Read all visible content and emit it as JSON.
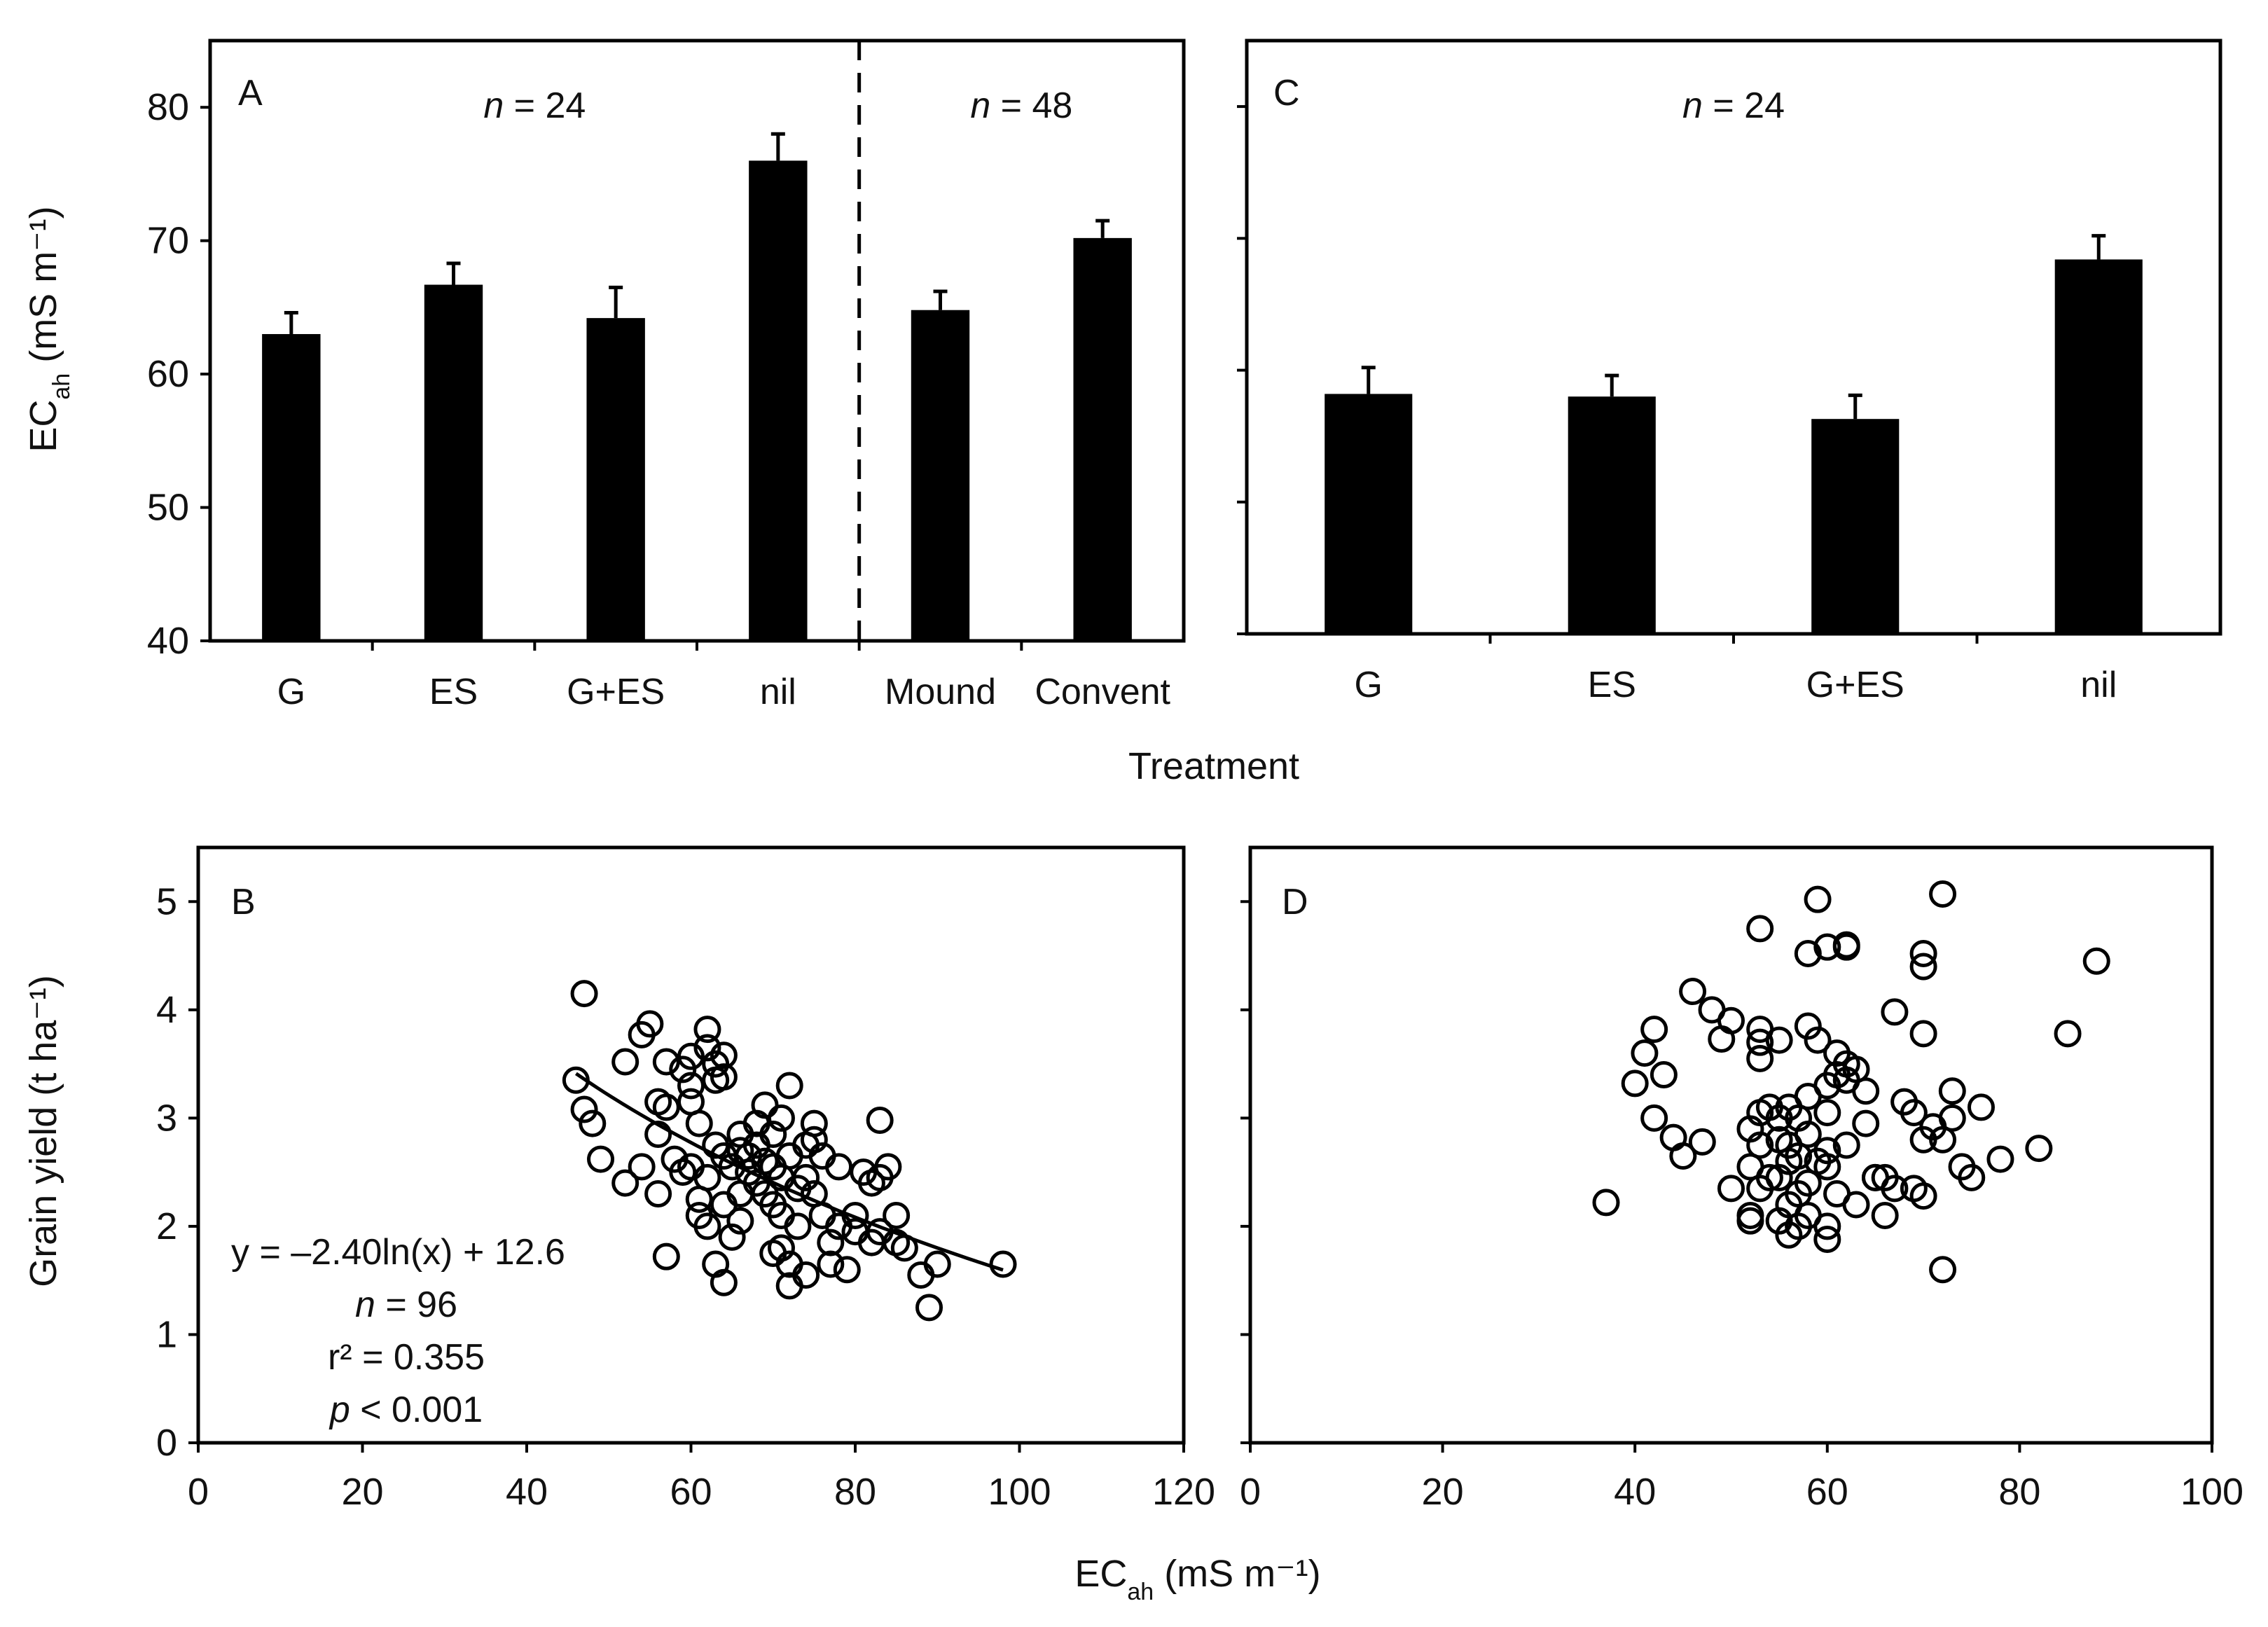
{
  "figure": {
    "y_title_top": "EC",
    "y_title_top_sub": "ah",
    "y_title_top_unit": " (mS m⁻¹)",
    "y_title_bottom": "Grain yield (t ha⁻¹)",
    "x_title_top": "Treatment",
    "x_title_bottom": "EC",
    "x_title_bottom_sub": "ah",
    "x_title_bottom_unit": " (mS m⁻¹)"
  },
  "chart_data": [
    {
      "panel": "A",
      "type": "bar",
      "title": "",
      "categories": [
        "G",
        "ES",
        "G+ES",
        "nil",
        "Mound",
        "Convent"
      ],
      "values": [
        63,
        66.7,
        64.2,
        76,
        64.8,
        70.2
      ],
      "errors": [
        1.6,
        1.6,
        2.3,
        2,
        1.4,
        1.3
      ],
      "ylim": [
        40,
        85
      ],
      "yticks": [
        "40",
        "50",
        "60",
        "70",
        "80"
      ],
      "xlabel": "Treatment",
      "ylabel": "ECah (mS m⁻¹)",
      "divider_after_index": 3,
      "annotations": [
        {
          "italic": "n",
          "text": " = 24",
          "group": "left"
        },
        {
          "italic": "n",
          "text": " = 48",
          "group": "right"
        }
      ],
      "bar_color": "#000000"
    },
    {
      "panel": "C",
      "type": "bar",
      "title": "",
      "categories": [
        "G",
        "ES",
        "G+ES",
        "nil"
      ],
      "values": [
        58.2,
        58,
        56.3,
        68.4
      ],
      "errors": [
        2,
        1.6,
        1.8,
        1.8
      ],
      "ylim": [
        40,
        85
      ],
      "yticks": [
        "",
        "",
        "",
        "",
        ""
      ],
      "xlabel": "Treatment",
      "ylabel": "",
      "annotations": [
        {
          "italic": "n",
          "text": " = 24",
          "group": "center"
        }
      ],
      "bar_color": "#000000"
    },
    {
      "panel": "B",
      "type": "scatter",
      "xlim": [
        0,
        120
      ],
      "ylim": [
        0,
        5.5
      ],
      "xticks": [
        "0",
        "20",
        "40",
        "60",
        "80",
        "100",
        "120"
      ],
      "yticks": [
        "0",
        "1",
        "2",
        "3",
        "4",
        "5"
      ],
      "xlabel": "ECah (mS m⁻¹)",
      "ylabel": "Grain yield (t ha⁻¹)",
      "fit": {
        "equation": "y = –2.40ln(x) + 12.6",
        "a": -2.4,
        "b": 12.6,
        "x_range": [
          46,
          98
        ]
      },
      "stats": {
        "n_italic": "n",
        "n_text": " = 96",
        "r2": "r² = 0.355",
        "p_italic": "p",
        "p_text": " < 0.001"
      },
      "points": [
        [
          47,
          4.15
        ],
        [
          46,
          3.35
        ],
        [
          47,
          3.08
        ],
        [
          48,
          2.95
        ],
        [
          49,
          2.62
        ],
        [
          52,
          3.52
        ],
        [
          52,
          2.4
        ],
        [
          54,
          3.77
        ],
        [
          55,
          3.87
        ],
        [
          54,
          2.55
        ],
        [
          56,
          3.15
        ],
        [
          56,
          2.85
        ],
        [
          56,
          2.3
        ],
        [
          57,
          3.52
        ],
        [
          57,
          3.1
        ],
        [
          57,
          1.72
        ],
        [
          58,
          2.62
        ],
        [
          59,
          3.45
        ],
        [
          60,
          3.57
        ],
        [
          60,
          3.3
        ],
        [
          60,
          3.15
        ],
        [
          61,
          2.95
        ],
        [
          60,
          2.55
        ],
        [
          61,
          2.1
        ],
        [
          62,
          2.45
        ],
        [
          62,
          3.82
        ],
        [
          62,
          3.65
        ],
        [
          63,
          3.5
        ],
        [
          63,
          3.35
        ],
        [
          63,
          2.75
        ],
        [
          62,
          2.0
        ],
        [
          63,
          1.65
        ],
        [
          64,
          3.58
        ],
        [
          64,
          3.38
        ],
        [
          64,
          2.65
        ],
        [
          64,
          2.2
        ],
        [
          64,
          1.48
        ],
        [
          65,
          2.55
        ],
        [
          65,
          1.9
        ],
        [
          66,
          2.7
        ],
        [
          66,
          2.3
        ],
        [
          66,
          2.05
        ],
        [
          67,
          2.65
        ],
        [
          67,
          2.5
        ],
        [
          68,
          2.75
        ],
        [
          68,
          2.4
        ],
        [
          69,
          3.12
        ],
        [
          69,
          2.6
        ],
        [
          70,
          2.85
        ],
        [
          70,
          2.55
        ],
        [
          70,
          2.2
        ],
        [
          70,
          1.75
        ],
        [
          71,
          3.0
        ],
        [
          71,
          2.45
        ],
        [
          71,
          2.1
        ],
        [
          72,
          3.3
        ],
        [
          72,
          2.65
        ],
        [
          72,
          1.65
        ],
        [
          72,
          1.45
        ],
        [
          73,
          2.35
        ],
        [
          73,
          2.0
        ],
        [
          74,
          2.75
        ],
        [
          74,
          2.45
        ],
        [
          74,
          1.55
        ],
        [
          75,
          2.95
        ],
        [
          75,
          2.8
        ],
        [
          75,
          2.3
        ],
        [
          76,
          2.65
        ],
        [
          76,
          2.1
        ],
        [
          77,
          1.85
        ],
        [
          77,
          1.65
        ],
        [
          78,
          2.55
        ],
        [
          78,
          2.0
        ],
        [
          79,
          1.6
        ],
        [
          80,
          2.1
        ],
        [
          80,
          1.95
        ],
        [
          81,
          2.5
        ],
        [
          82,
          2.4
        ],
        [
          82,
          1.85
        ],
        [
          83,
          2.98
        ],
        [
          83,
          2.45
        ],
        [
          83,
          1.95
        ],
        [
          84,
          2.55
        ],
        [
          85,
          2.1
        ],
        [
          85,
          1.85
        ],
        [
          86,
          1.8
        ],
        [
          88,
          1.55
        ],
        [
          89,
          1.25
        ],
        [
          90,
          1.65
        ],
        [
          98,
          1.65
        ],
        [
          68,
          2.95
        ],
        [
          66,
          2.85
        ],
        [
          59,
          2.5
        ],
        [
          61,
          2.25
        ],
        [
          69,
          2.3
        ],
        [
          71,
          1.8
        ]
      ]
    },
    {
      "panel": "D",
      "type": "scatter",
      "xlim": [
        0,
        100
      ],
      "ylim": [
        0,
        5.5
      ],
      "xticks": [
        "0",
        "20",
        "40",
        "60",
        "80",
        "100"
      ],
      "yticks": [
        "",
        "",
        "",
        "",
        "",
        ""
      ],
      "xlabel": "ECah (mS m⁻¹)",
      "ylabel": "",
      "points": [
        [
          37,
          2.22
        ],
        [
          40,
          3.32
        ],
        [
          41,
          3.6
        ],
        [
          42,
          3.82
        ],
        [
          42,
          3.0
        ],
        [
          43,
          3.4
        ],
        [
          44,
          2.82
        ],
        [
          45,
          2.65
        ],
        [
          46,
          4.17
        ],
        [
          47,
          2.78
        ],
        [
          48,
          4.0
        ],
        [
          49,
          3.73
        ],
        [
          50,
          2.35
        ],
        [
          50,
          3.9
        ],
        [
          52,
          2.9
        ],
        [
          52,
          2.55
        ],
        [
          52,
          2.1
        ],
        [
          52,
          2.05
        ],
        [
          53,
          3.82
        ],
        [
          53,
          3.7
        ],
        [
          53,
          3.55
        ],
        [
          53,
          3.05
        ],
        [
          53,
          2.75
        ],
        [
          53,
          2.35
        ],
        [
          53,
          4.75
        ],
        [
          54,
          3.1
        ],
        [
          54,
          2.45
        ],
        [
          55,
          3.72
        ],
        [
          55,
          3.0
        ],
        [
          55,
          2.8
        ],
        [
          55,
          2.45
        ],
        [
          55,
          2.05
        ],
        [
          56,
          3.1
        ],
        [
          56,
          2.75
        ],
        [
          56,
          2.6
        ],
        [
          56,
          2.2
        ],
        [
          56,
          1.92
        ],
        [
          57,
          3.0
        ],
        [
          57,
          2.65
        ],
        [
          57,
          2.3
        ],
        [
          57,
          2.0
        ],
        [
          58,
          4.52
        ],
        [
          58,
          3.85
        ],
        [
          58,
          3.2
        ],
        [
          58,
          2.85
        ],
        [
          58,
          2.4
        ],
        [
          58,
          2.1
        ],
        [
          59,
          5.02
        ],
        [
          59,
          3.72
        ],
        [
          59,
          2.6
        ],
        [
          60,
          4.58
        ],
        [
          60,
          3.3
        ],
        [
          60,
          3.05
        ],
        [
          60,
          2.55
        ],
        [
          60,
          2.0
        ],
        [
          60,
          1.88
        ],
        [
          61,
          3.6
        ],
        [
          61,
          3.4
        ],
        [
          61,
          2.3
        ],
        [
          62,
          4.6
        ],
        [
          62,
          4.58
        ],
        [
          62,
          3.5
        ],
        [
          62,
          3.35
        ],
        [
          62,
          2.75
        ],
        [
          63,
          3.45
        ],
        [
          63,
          2.2
        ],
        [
          64,
          3.25
        ],
        [
          64,
          2.95
        ],
        [
          65,
          2.45
        ],
        [
          65,
          2.45
        ],
        [
          66,
          2.45
        ],
        [
          66,
          2.1
        ],
        [
          67,
          3.98
        ],
        [
          67,
          2.35
        ],
        [
          68,
          3.15
        ],
        [
          69,
          3.05
        ],
        [
          69,
          2.35
        ],
        [
          70,
          4.52
        ],
        [
          70,
          4.4
        ],
        [
          70,
          3.78
        ],
        [
          70,
          2.8
        ],
        [
          70,
          2.28
        ],
        [
          72,
          5.07
        ],
        [
          72,
          2.8
        ],
        [
          72,
          1.6
        ],
        [
          73,
          3.25
        ],
        [
          73,
          3.0
        ],
        [
          74,
          2.55
        ],
        [
          75,
          2.45
        ],
        [
          76,
          3.1
        ],
        [
          78,
          2.62
        ],
        [
          82,
          2.72
        ],
        [
          85,
          3.78
        ],
        [
          88,
          4.45
        ],
        [
          71,
          2.92
        ],
        [
          60,
          2.7
        ]
      ]
    }
  ]
}
